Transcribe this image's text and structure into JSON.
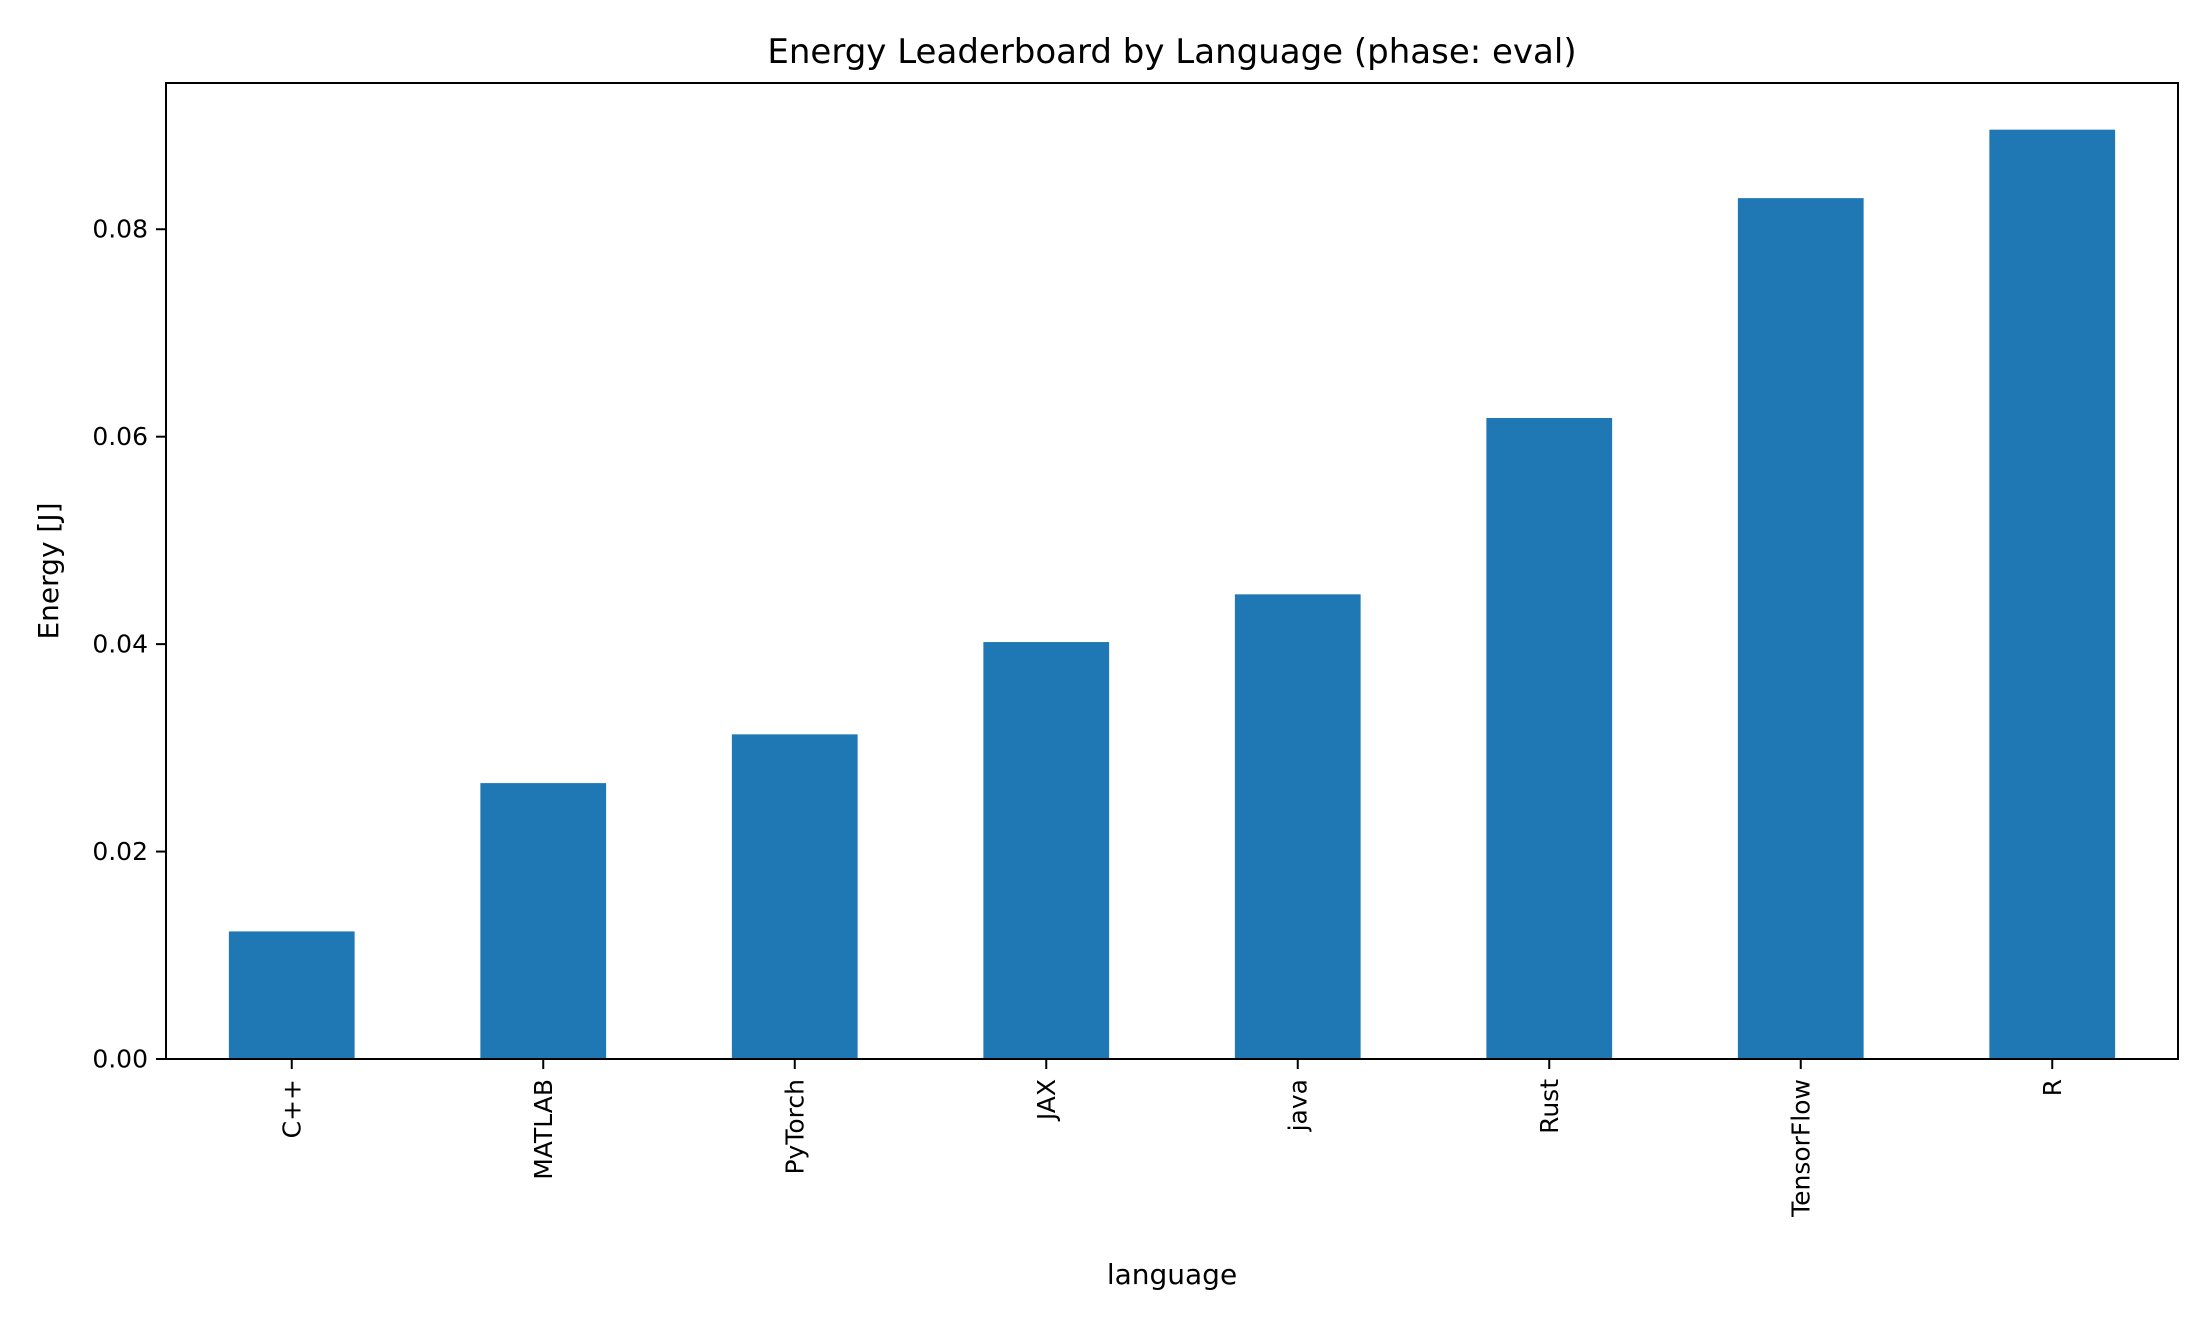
{
  "chart_data": {
    "type": "bar",
    "title": "Energy Leaderboard by Language (phase: eval)",
    "xlabel": "language",
    "ylabel": "Energy [J]",
    "categories": [
      "C++",
      "MATLAB",
      "PyTorch",
      "JAX",
      "java",
      "Rust",
      "TensorFlow",
      "R"
    ],
    "values": [
      0.0123,
      0.0266,
      0.0313,
      0.0402,
      0.0448,
      0.0618,
      0.083,
      0.0896
    ],
    "ylim": [
      0,
      0.0941
    ],
    "yticks": [
      0.0,
      0.02,
      0.04,
      0.06,
      0.08
    ],
    "ytick_labels": [
      "0.00",
      "0.02",
      "0.04",
      "0.06",
      "0.08"
    ],
    "bar_color": "#1f77b4",
    "grid": false,
    "legend": "none"
  }
}
